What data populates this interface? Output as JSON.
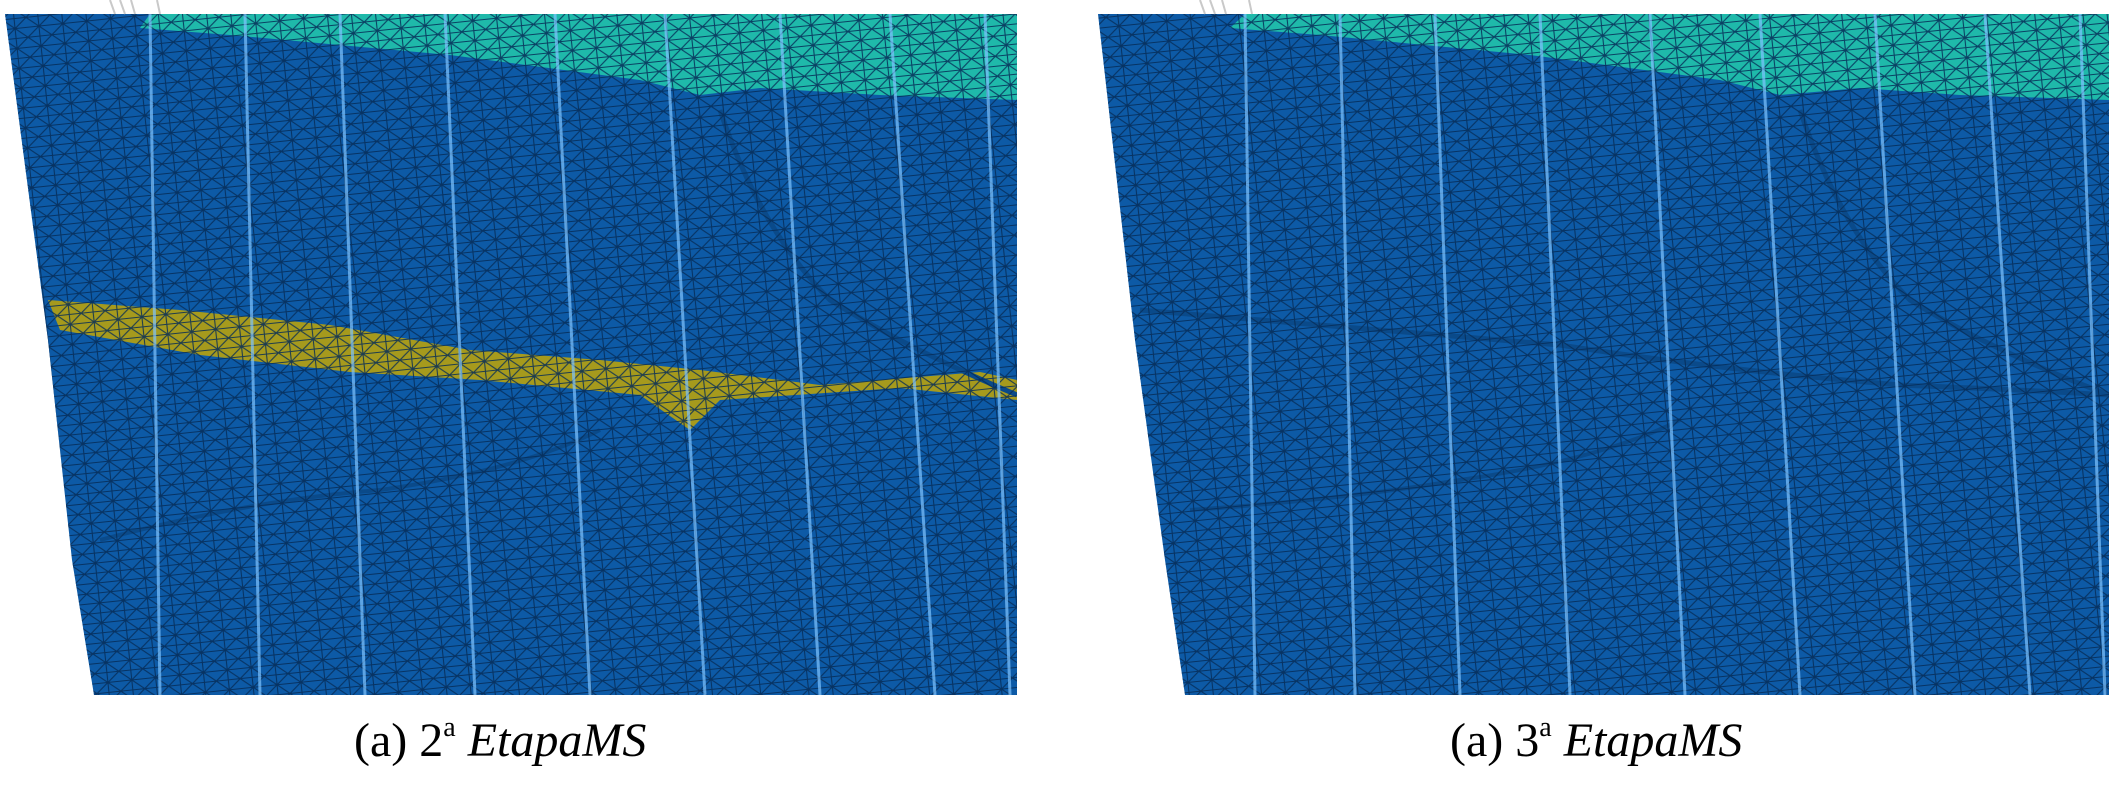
{
  "figures": [
    {
      "caption": {
        "prefix": "(a) 2",
        "superscript": "a",
        "name": "EtapaMS"
      },
      "has_yellow_layer": true
    },
    {
      "caption": {
        "prefix": "(a) 3",
        "superscript": "a",
        "name": "EtapaMS"
      },
      "has_yellow_layer": false
    }
  ],
  "colors": {
    "mesh_blue": "#0d5aa6",
    "mesh_line": "#062c57",
    "teal_layer": "#1fb9aa",
    "yellow_layer": "#a69a1d",
    "highlight": "#7fc4ff",
    "background": "#ffffff"
  }
}
